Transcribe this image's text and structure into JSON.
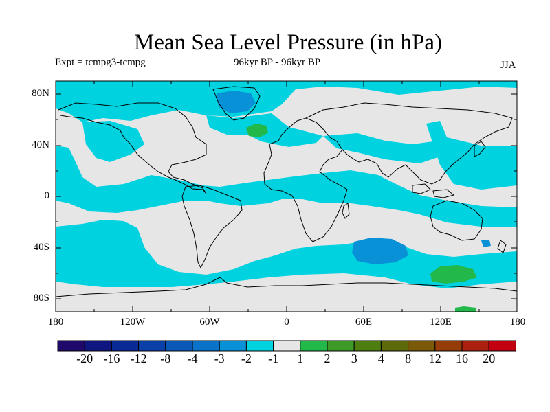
{
  "title": "Mean Sea Level Pressure (in hPa)",
  "experiment": "Expt = tcmpg3-tcmpg",
  "period": "96kyr BP - 96kyr BP",
  "season": "JJA",
  "lat_labels": [
    "80N",
    "40N",
    "0",
    "40S",
    "80S"
  ],
  "lon_labels": [
    "180",
    "120W",
    "60W",
    "0",
    "60E",
    "120E",
    "180"
  ],
  "colorbar": {
    "colors": [
      "#1f0a6b",
      "#0f1680",
      "#0a2a96",
      "#0a40a8",
      "#0a58b8",
      "#0a72c8",
      "#0891d6",
      "#00d2e0",
      "#e6e6e6",
      "#23b84a",
      "#3e9a26",
      "#4f7e10",
      "#5e6a0a",
      "#7a5a08",
      "#963c08",
      "#ac2010",
      "#c20010"
    ],
    "labels": [
      "-20",
      "-16",
      "-12",
      "-8",
      "-4",
      "-3",
      "-2",
      "-1",
      "1",
      "2",
      "3",
      "4",
      "8",
      "12",
      "16",
      "20"
    ]
  },
  "fill_colors": {
    "neutral": "#e6e6e6",
    "light_cyan": "#00d2e0",
    "mid_blue": "#0891d6",
    "blue": "#0a72c8",
    "green": "#23b84a"
  }
}
